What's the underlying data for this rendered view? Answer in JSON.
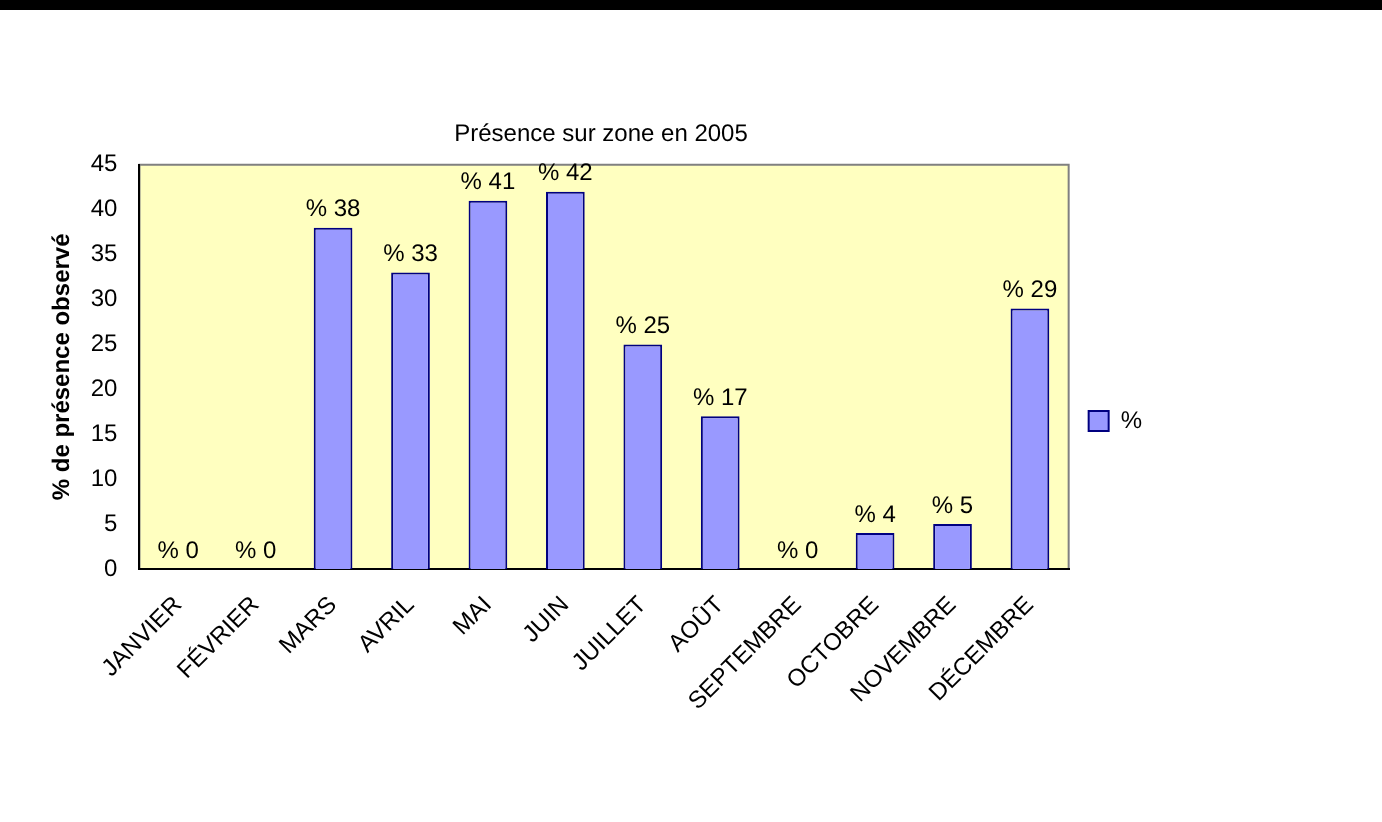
{
  "chart_data": {
    "type": "bar",
    "title": "Présence sur zone en 2005",
    "ylabel": "% de présence observé",
    "categories": [
      "JANVIER",
      "FÉVRIER",
      "MARS",
      "AVRIL",
      "MAI",
      "JUIN",
      "JUILLET",
      "AOÛT",
      "SEPTEMBRE",
      "OCTOBRE",
      "NOVEMBRE",
      "DÉCEMBRE"
    ],
    "series": [
      {
        "name": "%",
        "color": "#9999ff",
        "values": [
          0,
          0,
          38,
          33,
          41,
          42,
          25,
          17,
          0,
          4,
          5,
          29
        ],
        "value_labels": [
          "% 0",
          "% 0",
          "% 38",
          "% 33",
          "% 41",
          "% 42",
          "% 25",
          "% 17",
          "% 0",
          "% 4",
          "% 5",
          "% 29"
        ]
      }
    ],
    "ylim": [
      0,
      45
    ],
    "yticks": [
      0,
      5,
      10,
      15,
      20,
      25,
      30,
      35,
      40,
      45
    ],
    "grid": false,
    "legend": "right"
  }
}
